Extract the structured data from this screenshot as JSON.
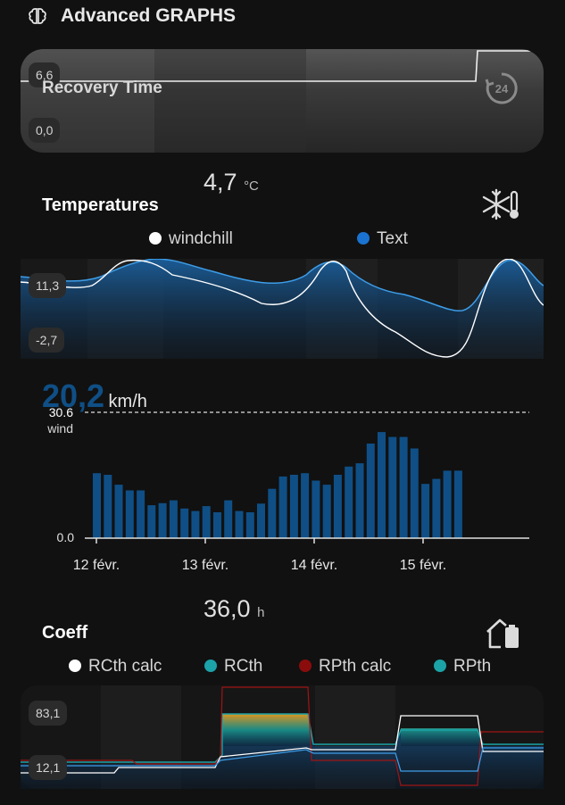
{
  "header": {
    "title": "Advanced GRAPHS",
    "icon": "brain-icon"
  },
  "recovery": {
    "label": "Recovery Time",
    "ymax": "6,6",
    "ymin": "0,0",
    "icon": "clock-24-icon"
  },
  "temperatures": {
    "title": "Temperatures",
    "value": "4,7",
    "unit": "°C",
    "icon": "snowflake-thermometer-icon",
    "ymax": "11,3",
    "ymin": "-2,7",
    "legend": [
      {
        "label": "windchill",
        "color": "#ffffff"
      },
      {
        "label": "Text",
        "color": "#1a73d0"
      }
    ]
  },
  "wind": {
    "value": "20,2",
    "unit": "km/h",
    "threshold_label": "30.6",
    "series_label": "wind",
    "zero_label": "0.0",
    "x_labels": [
      "12 févr.",
      "13 févr.",
      "14 févr.",
      "15 févr."
    ]
  },
  "coeff": {
    "title": "Coeff",
    "value": "36,0",
    "unit": "h",
    "icon": "house-battery-icon",
    "ymax": "83,1",
    "ymin": "12,1",
    "legend": [
      {
        "label": "RCth calc",
        "color": "#ffffff"
      },
      {
        "label": "RCth",
        "color": "#1ba3a8"
      },
      {
        "label": "RPth calc",
        "color": "#8b0c0c"
      },
      {
        "label": "RPth",
        "color": "#1ba3a8"
      }
    ]
  },
  "chart_data": [
    {
      "type": "bar",
      "title": "",
      "series": [
        {
          "name": "wind",
          "values": [
            15.8,
            15.4,
            13.0,
            11.6,
            11.6,
            8.0,
            8.5,
            9.2,
            7.2,
            6.6,
            7.8,
            6.3,
            9.2,
            6.6,
            6.3,
            8.4,
            12.0,
            15.0,
            15.4,
            15.8,
            14.0,
            13.0,
            15.4,
            17.4,
            18.2,
            23.0,
            25.8,
            24.6,
            24.6,
            21.8,
            13.2,
            14.4,
            16.4,
            16.4
          ]
        }
      ],
      "threshold": 30.6,
      "ylim": [
        0,
        30.6
      ],
      "x_ticks": [
        "12 févr.",
        "13 févr.",
        "14 févr.",
        "15 févr."
      ]
    }
  ]
}
